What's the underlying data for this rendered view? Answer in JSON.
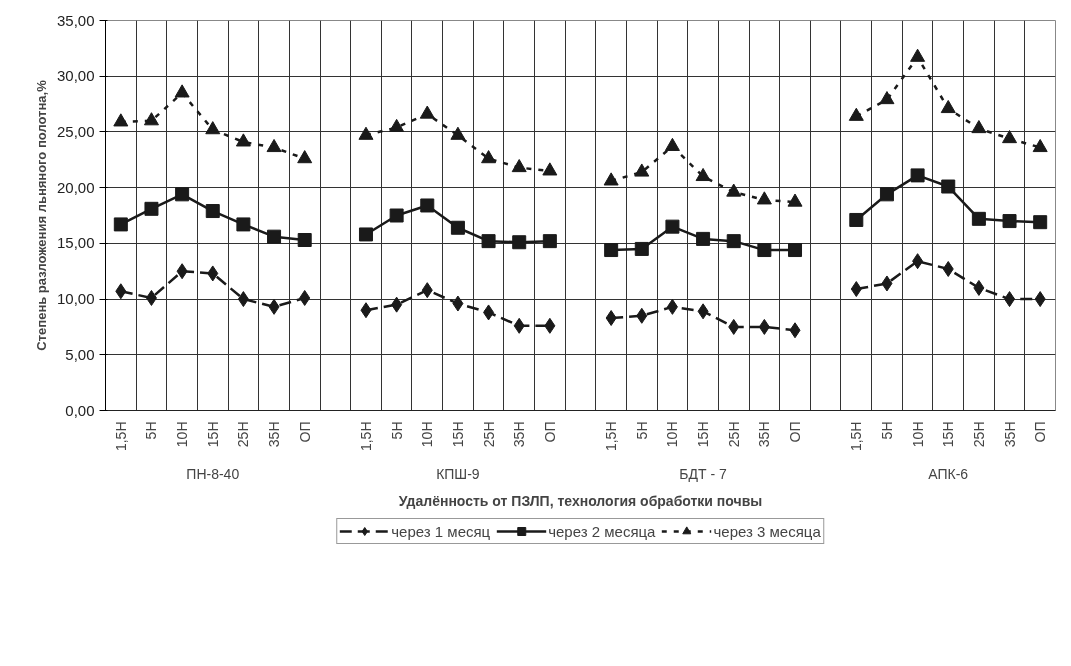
{
  "chart_data": {
    "type": "line",
    "xlabel": "Удалённость от ПЗЛП, технология обработки почвы",
    "ylabel": "Степень разложения льняного полотна,%",
    "categories": [
      "1,5Н",
      "5Н",
      "10Н",
      "15Н",
      "25Н",
      "35Н",
      "ОП",
      null,
      "1,5Н",
      "5Н",
      "10Н",
      "15Н",
      "25Н",
      "35Н",
      "ОП",
      null,
      "1,5Н",
      "5Н",
      "10Н",
      "15Н",
      "25Н",
      "35Н",
      "ОП",
      null,
      "1,5Н",
      "5Н",
      "10Н",
      "15Н",
      "25Н",
      "35Н",
      "ОП"
    ],
    "annotations": [
      "ПН-8-40",
      "КПШ-9",
      "БДТ - 7",
      "АПК-6"
    ],
    "series": [
      {
        "name": "через 1 месяц",
        "color": "#1a1a1a",
        "marker": "diamond",
        "line_style": "dashed",
        "values": [
          10.7,
          10.1,
          12.5,
          12.3,
          10.0,
          9.3,
          10.1,
          null,
          9.0,
          9.5,
          10.8,
          9.6,
          8.8,
          7.6,
          7.6,
          null,
          8.3,
          8.5,
          9.3,
          8.9,
          7.5,
          7.5,
          7.2,
          null,
          10.9,
          11.4,
          13.4,
          12.7,
          11.0,
          10.0,
          10.0
        ]
      },
      {
        "name": "через 2 месяца",
        "color": "#1a1a1a",
        "marker": "square",
        "line_style": "solid",
        "values": [
          16.7,
          18.1,
          19.4,
          17.9,
          16.7,
          15.6,
          15.3,
          null,
          15.8,
          17.5,
          18.4,
          16.4,
          15.2,
          15.1,
          15.2,
          null,
          14.4,
          14.5,
          16.5,
          15.4,
          15.2,
          14.4,
          14.4,
          null,
          17.1,
          19.4,
          21.1,
          20.1,
          17.2,
          17.0,
          16.9
        ]
      },
      {
        "name": "через 3 месяца",
        "color": "#1a1a1a",
        "marker": "triangle",
        "line_style": "dotted",
        "values": [
          25.9,
          26.0,
          28.5,
          25.2,
          24.1,
          23.6,
          22.6,
          null,
          24.7,
          25.4,
          26.6,
          24.7,
          22.6,
          21.8,
          21.5,
          null,
          20.6,
          21.4,
          23.7,
          21.0,
          19.6,
          18.9,
          18.7,
          null,
          26.4,
          27.9,
          31.7,
          27.1,
          25.3,
          24.4,
          23.6
        ]
      }
    ],
    "ylim": [
      0,
      35
    ],
    "yticks": [
      {
        "value": 0,
        "label": "0,00"
      },
      {
        "value": 5,
        "label": "5,00"
      },
      {
        "value": 10,
        "label": "10,00"
      },
      {
        "value": 15,
        "label": "15,00"
      },
      {
        "value": 20,
        "label": "20,00"
      },
      {
        "value": 25,
        "label": "25,00"
      },
      {
        "value": 30,
        "label": "30,00"
      },
      {
        "value": 35,
        "label": "35,00"
      }
    ],
    "grid": true,
    "legend": "bottom"
  }
}
